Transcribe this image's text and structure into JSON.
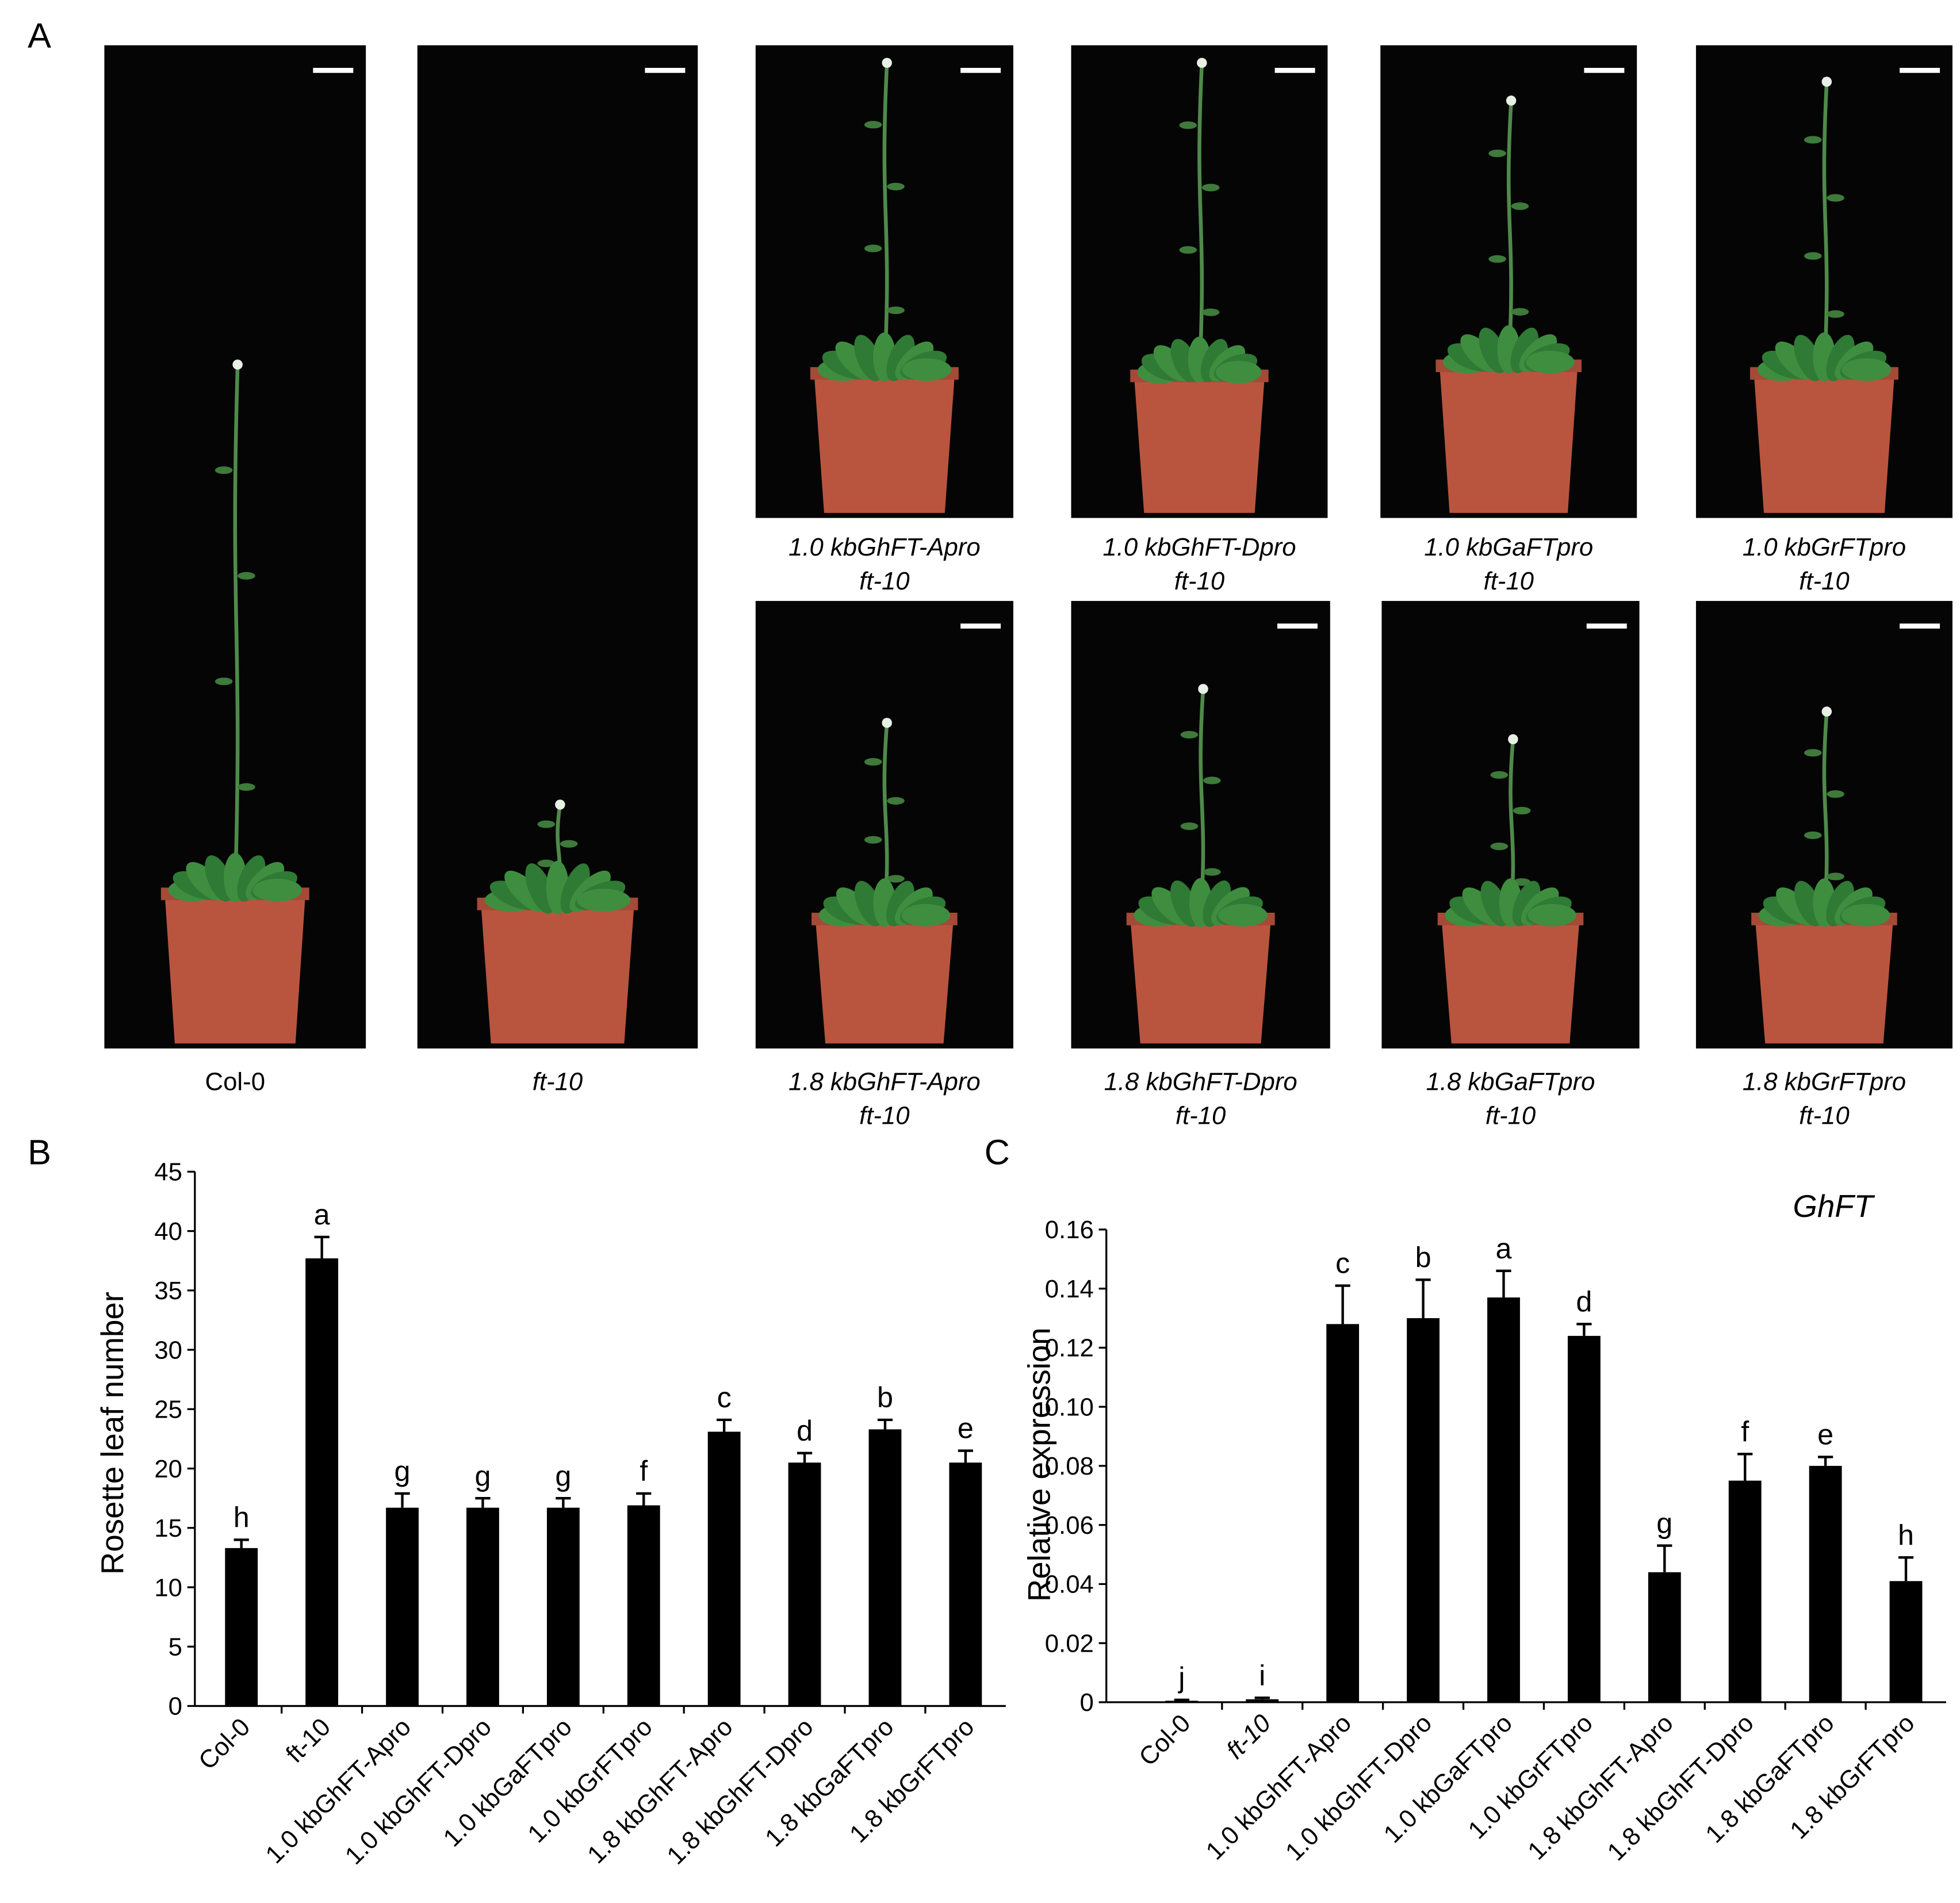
{
  "panel_a": {
    "label": "A",
    "photos": [
      {
        "caption": [
          "Col-0"
        ]
      },
      {
        "caption": [
          "ft-10"
        ]
      },
      {
        "caption": [
          "1.0 kbGhFT-Apro",
          "ft-10"
        ]
      },
      {
        "caption": [
          "1.0 kbGhFT-Dpro",
          "ft-10"
        ]
      },
      {
        "caption": [
          "1.0 kbGaFTpro",
          "ft-10"
        ]
      },
      {
        "caption": [
          "1.0 kbGrFTpro",
          "ft-10"
        ]
      },
      {
        "caption": [
          "1.8 kbGhFT-Apro",
          "ft-10"
        ]
      },
      {
        "caption": [
          "1.8 kbGhFT-Dpro",
          "ft-10"
        ]
      },
      {
        "caption": [
          "1.8 kbGaFTpro",
          "ft-10"
        ]
      },
      {
        "caption": [
          "1.8 kbGrFTpro",
          "ft-10"
        ]
      }
    ]
  },
  "chart_data": [
    {
      "type": "bar",
      "panel": "B",
      "y_label": "Rosette leaf number",
      "color": "#000000",
      "categories": [
        "Col-0",
        "ft-10",
        "1.0 kbGhFT-Apro",
        "1.0 kbGhFT-Dpro",
        "1.0 kbGaFTpro",
        "1.0 kbGrFTpro",
        "1.8 kbGhFT-Apro",
        "1.8 kbGhFT-Dpro",
        "1.8 kbGaFTpro",
        "1.8 kbGrFTpro"
      ],
      "values": [
        13.3,
        37.7,
        16.7,
        16.7,
        16.7,
        16.9,
        23.1,
        20.5,
        23.3,
        20.5
      ],
      "errors": [
        0.7,
        1.8,
        1.2,
        0.8,
        0.8,
        1.0,
        1.0,
        0.8,
        0.8,
        1.0
      ],
      "significance_letters": [
        "h",
        "a",
        "g",
        "g",
        "g",
        "f",
        "c",
        "d",
        "b",
        "e"
      ],
      "ylim": [
        0,
        45
      ],
      "yticks": [
        0,
        5,
        10,
        15,
        20,
        25,
        30,
        35,
        40,
        45
      ]
    },
    {
      "type": "bar",
      "panel": "C",
      "y_label": "Relative expression",
      "annotation": "GhFT",
      "color": "#000000",
      "categories": [
        "Col-0",
        "ft-10",
        "1.0 kbGhFT-Apro",
        "1.0 kbGhFT-Dpro",
        "1.0 kbGaFTpro",
        "1.0 kbGrFTpro",
        "1.8 kbGhFT-Apro",
        "1.8 kbGhFT-Dpro",
        "1.8 kbGaFTpro",
        "1.8 kbGrFTpro"
      ],
      "values": [
        0.0005,
        0.001,
        0.128,
        0.13,
        0.137,
        0.124,
        0.044,
        0.075,
        0.08,
        0.041
      ],
      "errors": [
        0.0003,
        0.0005,
        0.013,
        0.013,
        0.009,
        0.004,
        0.009,
        0.009,
        0.003,
        0.008
      ],
      "significance_letters": [
        "j",
        "i",
        "c",
        "b",
        "a",
        "d",
        "g",
        "f",
        "e",
        "h"
      ],
      "ylim": [
        0,
        0.16
      ],
      "yticks": [
        0,
        0.02,
        0.04,
        0.06,
        0.08,
        {
          "value": 0.1,
          "label": "0.10"
        },
        0.12,
        0.14,
        0.16
      ]
    }
  ]
}
